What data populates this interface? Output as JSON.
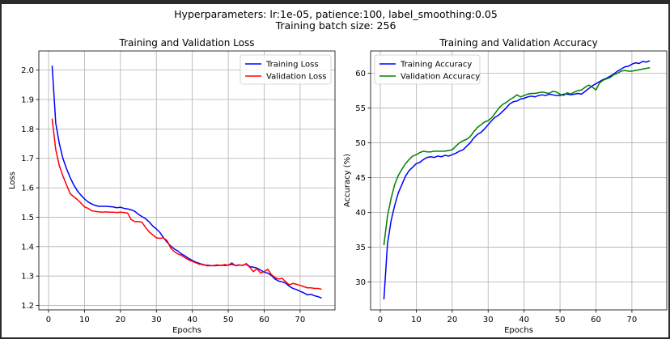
{
  "figure": {
    "suptitle_line1": "Hyperparameters: lr:1e-05, patience:100, label_smoothing:0.05",
    "suptitle_line2": "Training batch size: 256"
  },
  "chart_data": [
    {
      "type": "line",
      "title": "Training and Validation Loss",
      "xlabel": "Epochs",
      "ylabel": "Loss",
      "xlim": [
        -2.7,
        79.7
      ],
      "ylim": [
        1.185,
        2.065
      ],
      "xticks": [
        0,
        10,
        20,
        30,
        40,
        50,
        60,
        70
      ],
      "yticks": [
        1.2,
        1.3,
        1.4,
        1.5,
        1.6,
        1.7,
        1.8,
        1.9,
        2.0
      ],
      "ytick_labels": [
        "1.2",
        "1.3",
        "1.4",
        "1.5",
        "1.6",
        "1.7",
        "1.8",
        "1.9",
        "2.0"
      ],
      "grid": true,
      "legend_position": "upper-right",
      "series": [
        {
          "name": "Training Loss",
          "color": "#0000ff",
          "x": [
            1,
            2,
            3,
            4,
            5,
            6,
            7,
            8,
            9,
            10,
            11,
            12,
            13,
            14,
            15,
            16,
            17,
            18,
            19,
            20,
            21,
            22,
            23,
            24,
            25,
            26,
            27,
            28,
            29,
            30,
            31,
            32,
            33,
            34,
            35,
            36,
            37,
            38,
            39,
            40,
            41,
            42,
            43,
            44,
            45,
            46,
            47,
            48,
            49,
            50,
            51,
            52,
            53,
            54,
            55,
            56,
            57,
            58,
            59,
            60,
            61,
            62,
            63,
            64,
            65,
            66,
            67,
            68,
            69,
            70,
            71,
            72,
            73,
            74,
            75,
            76
          ],
          "y": [
            2.015,
            1.82,
            1.75,
            1.7,
            1.665,
            1.635,
            1.61,
            1.59,
            1.575,
            1.562,
            1.552,
            1.545,
            1.54,
            1.537,
            1.537,
            1.537,
            1.536,
            1.535,
            1.532,
            1.534,
            1.53,
            1.528,
            1.525,
            1.52,
            1.51,
            1.502,
            1.495,
            1.484,
            1.47,
            1.46,
            1.448,
            1.43,
            1.415,
            1.402,
            1.392,
            1.385,
            1.375,
            1.368,
            1.36,
            1.353,
            1.347,
            1.343,
            1.338,
            1.337,
            1.336,
            1.335,
            1.336,
            1.337,
            1.336,
            1.337,
            1.34,
            1.336,
            1.338,
            1.336,
            1.342,
            1.332,
            1.33,
            1.327,
            1.32,
            1.313,
            1.31,
            1.302,
            1.29,
            1.283,
            1.28,
            1.276,
            1.265,
            1.258,
            1.254,
            1.248,
            1.243,
            1.236,
            1.238,
            1.233,
            1.23,
            1.225
          ]
        },
        {
          "name": "Validation Loss",
          "color": "#ff0000",
          "x": [
            1,
            2,
            3,
            4,
            5,
            6,
            7,
            8,
            9,
            10,
            11,
            12,
            13,
            14,
            15,
            16,
            17,
            18,
            19,
            20,
            21,
            22,
            23,
            24,
            25,
            26,
            27,
            28,
            29,
            30,
            31,
            32,
            33,
            34,
            35,
            36,
            37,
            38,
            39,
            40,
            41,
            42,
            43,
            44,
            45,
            46,
            47,
            48,
            49,
            50,
            51,
            52,
            53,
            54,
            55,
            56,
            57,
            58,
            59,
            60,
            61,
            62,
            63,
            64,
            65,
            66,
            67,
            68,
            69,
            70,
            71,
            72,
            73,
            74,
            75,
            76
          ],
          "y": [
            1.835,
            1.73,
            1.675,
            1.64,
            1.61,
            1.58,
            1.57,
            1.56,
            1.548,
            1.535,
            1.53,
            1.522,
            1.52,
            1.518,
            1.517,
            1.518,
            1.517,
            1.517,
            1.516,
            1.517,
            1.516,
            1.514,
            1.492,
            1.485,
            1.485,
            1.483,
            1.465,
            1.45,
            1.44,
            1.43,
            1.428,
            1.43,
            1.42,
            1.395,
            1.383,
            1.375,
            1.37,
            1.362,
            1.355,
            1.35,
            1.345,
            1.34,
            1.34,
            1.335,
            1.335,
            1.336,
            1.338,
            1.336,
            1.339,
            1.337,
            1.345,
            1.335,
            1.337,
            1.337,
            1.34,
            1.33,
            1.315,
            1.325,
            1.31,
            1.315,
            1.323,
            1.305,
            1.295,
            1.29,
            1.292,
            1.28,
            1.27,
            1.275,
            1.272,
            1.268,
            1.264,
            1.26,
            1.26,
            1.258,
            1.258,
            1.255
          ]
        }
      ]
    },
    {
      "type": "line",
      "title": "Training and Validation Accuracy",
      "xlabel": "Epochs",
      "ylabel": "Accuracy (%)",
      "xlim": [
        -2.7,
        79.7
      ],
      "ylim": [
        26.0,
        63.2
      ],
      "xticks": [
        0,
        10,
        20,
        30,
        40,
        50,
        60,
        70
      ],
      "yticks": [
        30,
        35,
        40,
        45,
        50,
        55,
        60
      ],
      "ytick_labels": [
        "30",
        "35",
        "40",
        "45",
        "50",
        "55",
        "60"
      ],
      "grid": true,
      "legend_position": "upper-left",
      "series": [
        {
          "name": "Training Accuracy",
          "color": "#0000ff",
          "x": [
            1,
            2,
            3,
            4,
            5,
            6,
            7,
            8,
            9,
            10,
            11,
            12,
            13,
            14,
            15,
            16,
            17,
            18,
            19,
            20,
            21,
            22,
            23,
            24,
            25,
            26,
            27,
            28,
            29,
            30,
            31,
            32,
            33,
            34,
            35,
            36,
            37,
            38,
            39,
            40,
            41,
            42,
            43,
            44,
            45,
            46,
            47,
            48,
            49,
            50,
            51,
            52,
            53,
            54,
            55,
            56,
            57,
            58,
            59,
            60,
            61,
            62,
            63,
            64,
            65,
            66,
            67,
            68,
            69,
            70,
            71,
            72,
            73,
            74,
            75
          ],
          "y": [
            27.5,
            35.5,
            38.8,
            41.0,
            42.8,
            44.0,
            45.2,
            46.0,
            46.5,
            47.0,
            47.2,
            47.6,
            47.9,
            48.0,
            47.9,
            48.1,
            48.0,
            48.2,
            48.1,
            48.3,
            48.5,
            48.8,
            49.0,
            49.5,
            50.0,
            50.7,
            51.2,
            51.5,
            52.0,
            52.6,
            53.2,
            53.7,
            54.0,
            54.5,
            55.0,
            55.6,
            55.9,
            56.0,
            56.3,
            56.4,
            56.6,
            56.7,
            56.6,
            56.8,
            56.9,
            56.8,
            57.0,
            56.9,
            56.8,
            56.8,
            57.0,
            57.0,
            56.9,
            57.0,
            57.1,
            57.0,
            57.4,
            57.8,
            58.2,
            58.5,
            58.8,
            59.1,
            59.3,
            59.6,
            59.9,
            60.3,
            60.6,
            60.9,
            61.0,
            61.3,
            61.5,
            61.4,
            61.7,
            61.6,
            61.8
          ]
        },
        {
          "name": "Validation Accuracy",
          "color": "#008000",
          "x": [
            1,
            2,
            3,
            4,
            5,
            6,
            7,
            8,
            9,
            10,
            11,
            12,
            13,
            14,
            15,
            16,
            17,
            18,
            19,
            20,
            21,
            22,
            23,
            24,
            25,
            26,
            27,
            28,
            29,
            30,
            31,
            32,
            33,
            34,
            35,
            36,
            37,
            38,
            39,
            40,
            41,
            42,
            43,
            44,
            45,
            46,
            47,
            48,
            49,
            50,
            51,
            52,
            53,
            54,
            55,
            56,
            57,
            58,
            59,
            60,
            61,
            62,
            63,
            64,
            65,
            66,
            67,
            68,
            69,
            70,
            71,
            72,
            73,
            74,
            75
          ],
          "y": [
            35.3,
            39.5,
            42.0,
            44.0,
            45.3,
            46.2,
            47.0,
            47.6,
            48.1,
            48.3,
            48.6,
            48.8,
            48.7,
            48.7,
            48.8,
            48.8,
            48.8,
            48.8,
            48.9,
            49.0,
            49.5,
            50.0,
            50.3,
            50.5,
            50.9,
            51.6,
            52.2,
            52.6,
            53.0,
            53.2,
            53.6,
            54.3,
            55.0,
            55.5,
            55.8,
            56.2,
            56.5,
            56.9,
            56.6,
            56.8,
            57.0,
            57.1,
            57.1,
            57.2,
            57.3,
            57.2,
            57.1,
            57.4,
            57.3,
            57.0,
            56.8,
            57.2,
            57.0,
            57.3,
            57.5,
            57.6,
            58.0,
            58.3,
            58.0,
            57.6,
            58.6,
            59.0,
            59.2,
            59.4,
            59.8,
            60.0,
            60.3,
            60.4,
            60.3,
            60.3,
            60.4,
            60.5,
            60.6,
            60.7,
            60.8
          ]
        }
      ]
    }
  ]
}
